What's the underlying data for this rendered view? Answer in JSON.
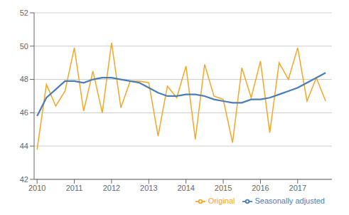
{
  "chart_data": {
    "type": "line",
    "x": [
      2010.0,
      2010.25,
      2010.5,
      2010.75,
      2011.0,
      2011.25,
      2011.5,
      2011.75,
      2012.0,
      2012.25,
      2012.5,
      2012.75,
      2013.0,
      2013.25,
      2013.5,
      2013.75,
      2014.0,
      2014.25,
      2014.5,
      2014.75,
      2015.0,
      2015.25,
      2015.5,
      2015.75,
      2016.0,
      2016.25,
      2016.5,
      2016.75,
      2017.0,
      2017.25,
      2017.5,
      2017.75
    ],
    "series": [
      {
        "name": "Original",
        "color": "#f5a623",
        "values": [
          43.8,
          47.7,
          46.4,
          47.3,
          49.9,
          46.1,
          48.5,
          46.0,
          50.2,
          46.3,
          47.9,
          47.9,
          47.8,
          44.6,
          47.6,
          46.9,
          48.8,
          44.4,
          48.9,
          47.0,
          46.8,
          44.2,
          48.7,
          46.9,
          49.1,
          44.8,
          49.0,
          48.0,
          49.9,
          46.7,
          48.1,
          46.7
        ]
      },
      {
        "name": "Seasonally adjusted",
        "color": "#4a7db5",
        "values": [
          45.8,
          46.9,
          47.4,
          47.9,
          47.9,
          47.8,
          48.0,
          48.1,
          48.1,
          48.0,
          47.9,
          47.8,
          47.5,
          47.2,
          47.0,
          47.0,
          47.1,
          47.1,
          47.0,
          46.8,
          46.7,
          46.6,
          46.6,
          46.8,
          46.8,
          46.9,
          47.1,
          47.3,
          47.5,
          47.8,
          48.1,
          48.4
        ]
      }
    ],
    "xlim": [
      2009.92,
      2017.92
    ],
    "ylim": [
      42,
      52
    ],
    "xticks": [
      2010,
      2011,
      2012,
      2013,
      2014,
      2015,
      2016,
      2017
    ],
    "yticks": [
      42,
      44,
      46,
      48,
      50,
      52
    ],
    "grid": true,
    "legend": "lower right"
  }
}
